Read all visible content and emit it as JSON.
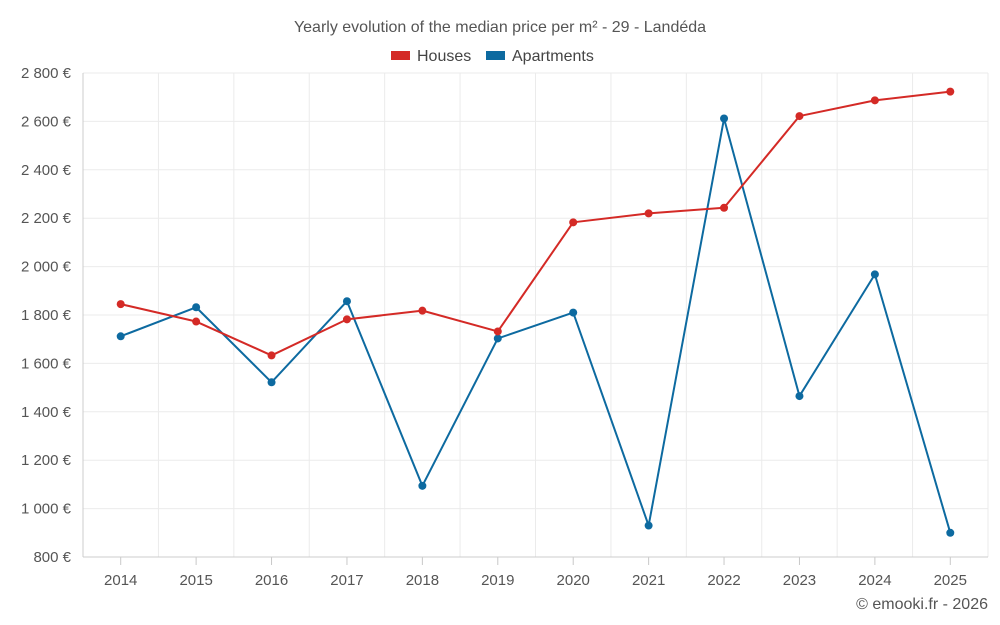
{
  "chart_data": {
    "type": "line",
    "title": "Yearly evolution of the median price per m² - 29 - Landéda",
    "categories": [
      "2014",
      "2015",
      "2016",
      "2017",
      "2018",
      "2019",
      "2020",
      "2021",
      "2022",
      "2023",
      "2024",
      "2025"
    ],
    "series": [
      {
        "name": "Houses",
        "color": "#d42a26",
        "values": [
          1845,
          1773,
          1633,
          1782,
          1818,
          1732,
          2183,
          2220,
          2243,
          2622,
          2687,
          2723
        ]
      },
      {
        "name": "Apartments",
        "color": "#0d6aa0",
        "values": [
          1712,
          1832,
          1522,
          1857,
          1094,
          1703,
          1810,
          930,
          2612,
          1465,
          1968,
          900
        ]
      }
    ],
    "ylim": [
      800,
      2800
    ],
    "yticks": [
      800,
      1000,
      1200,
      1400,
      1600,
      1800,
      2000,
      2200,
      2400,
      2600,
      2800
    ],
    "ytick_labels": [
      "800 €",
      "1 000 €",
      "1 200 €",
      "1 400 €",
      "1 600 €",
      "1 800 €",
      "2 000 €",
      "2 200 €",
      "2 400 €",
      "2 600 €",
      "2 800 €"
    ],
    "xlabel": "",
    "ylabel": "",
    "grid": true,
    "legend_position": "top-center"
  },
  "credit": "© emooki.fr - 2026"
}
